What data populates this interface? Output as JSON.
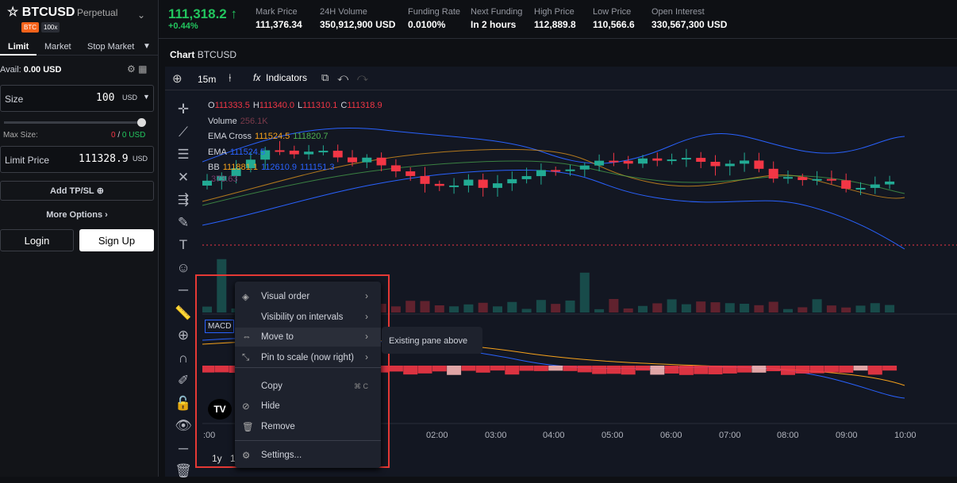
{
  "header": {
    "symbol": "BTCUSD",
    "contract": "Perpetual",
    "tags": [
      "BTC",
      "100x"
    ],
    "price": "111,318.2",
    "change": "+0.44%",
    "stats": [
      {
        "label": "Mark Price",
        "value": "111,376.34"
      },
      {
        "label": "24H Volume",
        "value": "350,912,900 USD"
      },
      {
        "label": "Funding Rate",
        "value": "0.0100%"
      },
      {
        "label": "Next Funding",
        "value": "In 2 hours"
      },
      {
        "label": "High Price",
        "value": "112,889.8"
      },
      {
        "label": "Low Price",
        "value": "110,566.6"
      },
      {
        "label": "Open Interest",
        "value": "330,567,300 USD"
      }
    ]
  },
  "order_panel": {
    "tabs": [
      "Limit",
      "Market",
      "Stop Market"
    ],
    "avail_label": "Avail:",
    "avail_value": "0.00 USD",
    "size_label": "Size",
    "size_value": "100",
    "size_unit": "USD",
    "max_size_label": "Max Size:",
    "max_sell": "0",
    "separator": "/",
    "max_buy": "0 USD",
    "limit_label": "Limit Price",
    "limit_value": "111328.9",
    "limit_unit": "USD",
    "add_tpsl": "Add TP/SL",
    "more_options": "More Options",
    "login": "Login",
    "signup": "Sign Up"
  },
  "chart": {
    "title": "Chart",
    "symbol": "BTCUSD",
    "interval": "15m",
    "indicators": "Indicators",
    "ohlc": [
      {
        "key": "O",
        "value": "111333.5"
      },
      {
        "key": "H",
        "value": "111340.0"
      },
      {
        "key": "L",
        "value": "111310.1"
      },
      {
        "key": "C",
        "value": "111318.9"
      }
    ],
    "legend": [
      {
        "name": "Volume",
        "values": [
          "256.1K"
        ]
      },
      {
        "name": "EMA Cross",
        "values": [
          "111524.5",
          "111820.7"
        ]
      },
      {
        "name": "EMA",
        "values": [
          "111524.5"
        ]
      },
      {
        "name": "BB",
        "values": [
          "111881.1",
          "112610.9",
          "111151.3"
        ]
      }
    ],
    "extra_value": "373.63",
    "pane_label": "MACD",
    "times": [
      ":00",
      "02:00",
      "03:00",
      "04:00",
      "05:00",
      "06:00",
      "07:00",
      "08:00",
      "09:00",
      "10:00"
    ],
    "ranges": [
      "1y",
      "1"
    ]
  },
  "menu": {
    "items": [
      {
        "label": "Visual order",
        "shortcut": null
      },
      {
        "label": "Visibility on intervals",
        "shortcut": null
      },
      {
        "label": "Move to",
        "shortcut": null
      },
      {
        "label": "Pin to scale (now right)",
        "shortcut": null
      },
      {
        "label": "Copy",
        "shortcut": "⌘ C"
      },
      {
        "label": "Hide",
        "shortcut": null
      },
      {
        "label": "Remove",
        "shortcut": null
      },
      {
        "label": "Settings...",
        "shortcut": null
      }
    ],
    "submenu": "Existing pane above"
  }
}
